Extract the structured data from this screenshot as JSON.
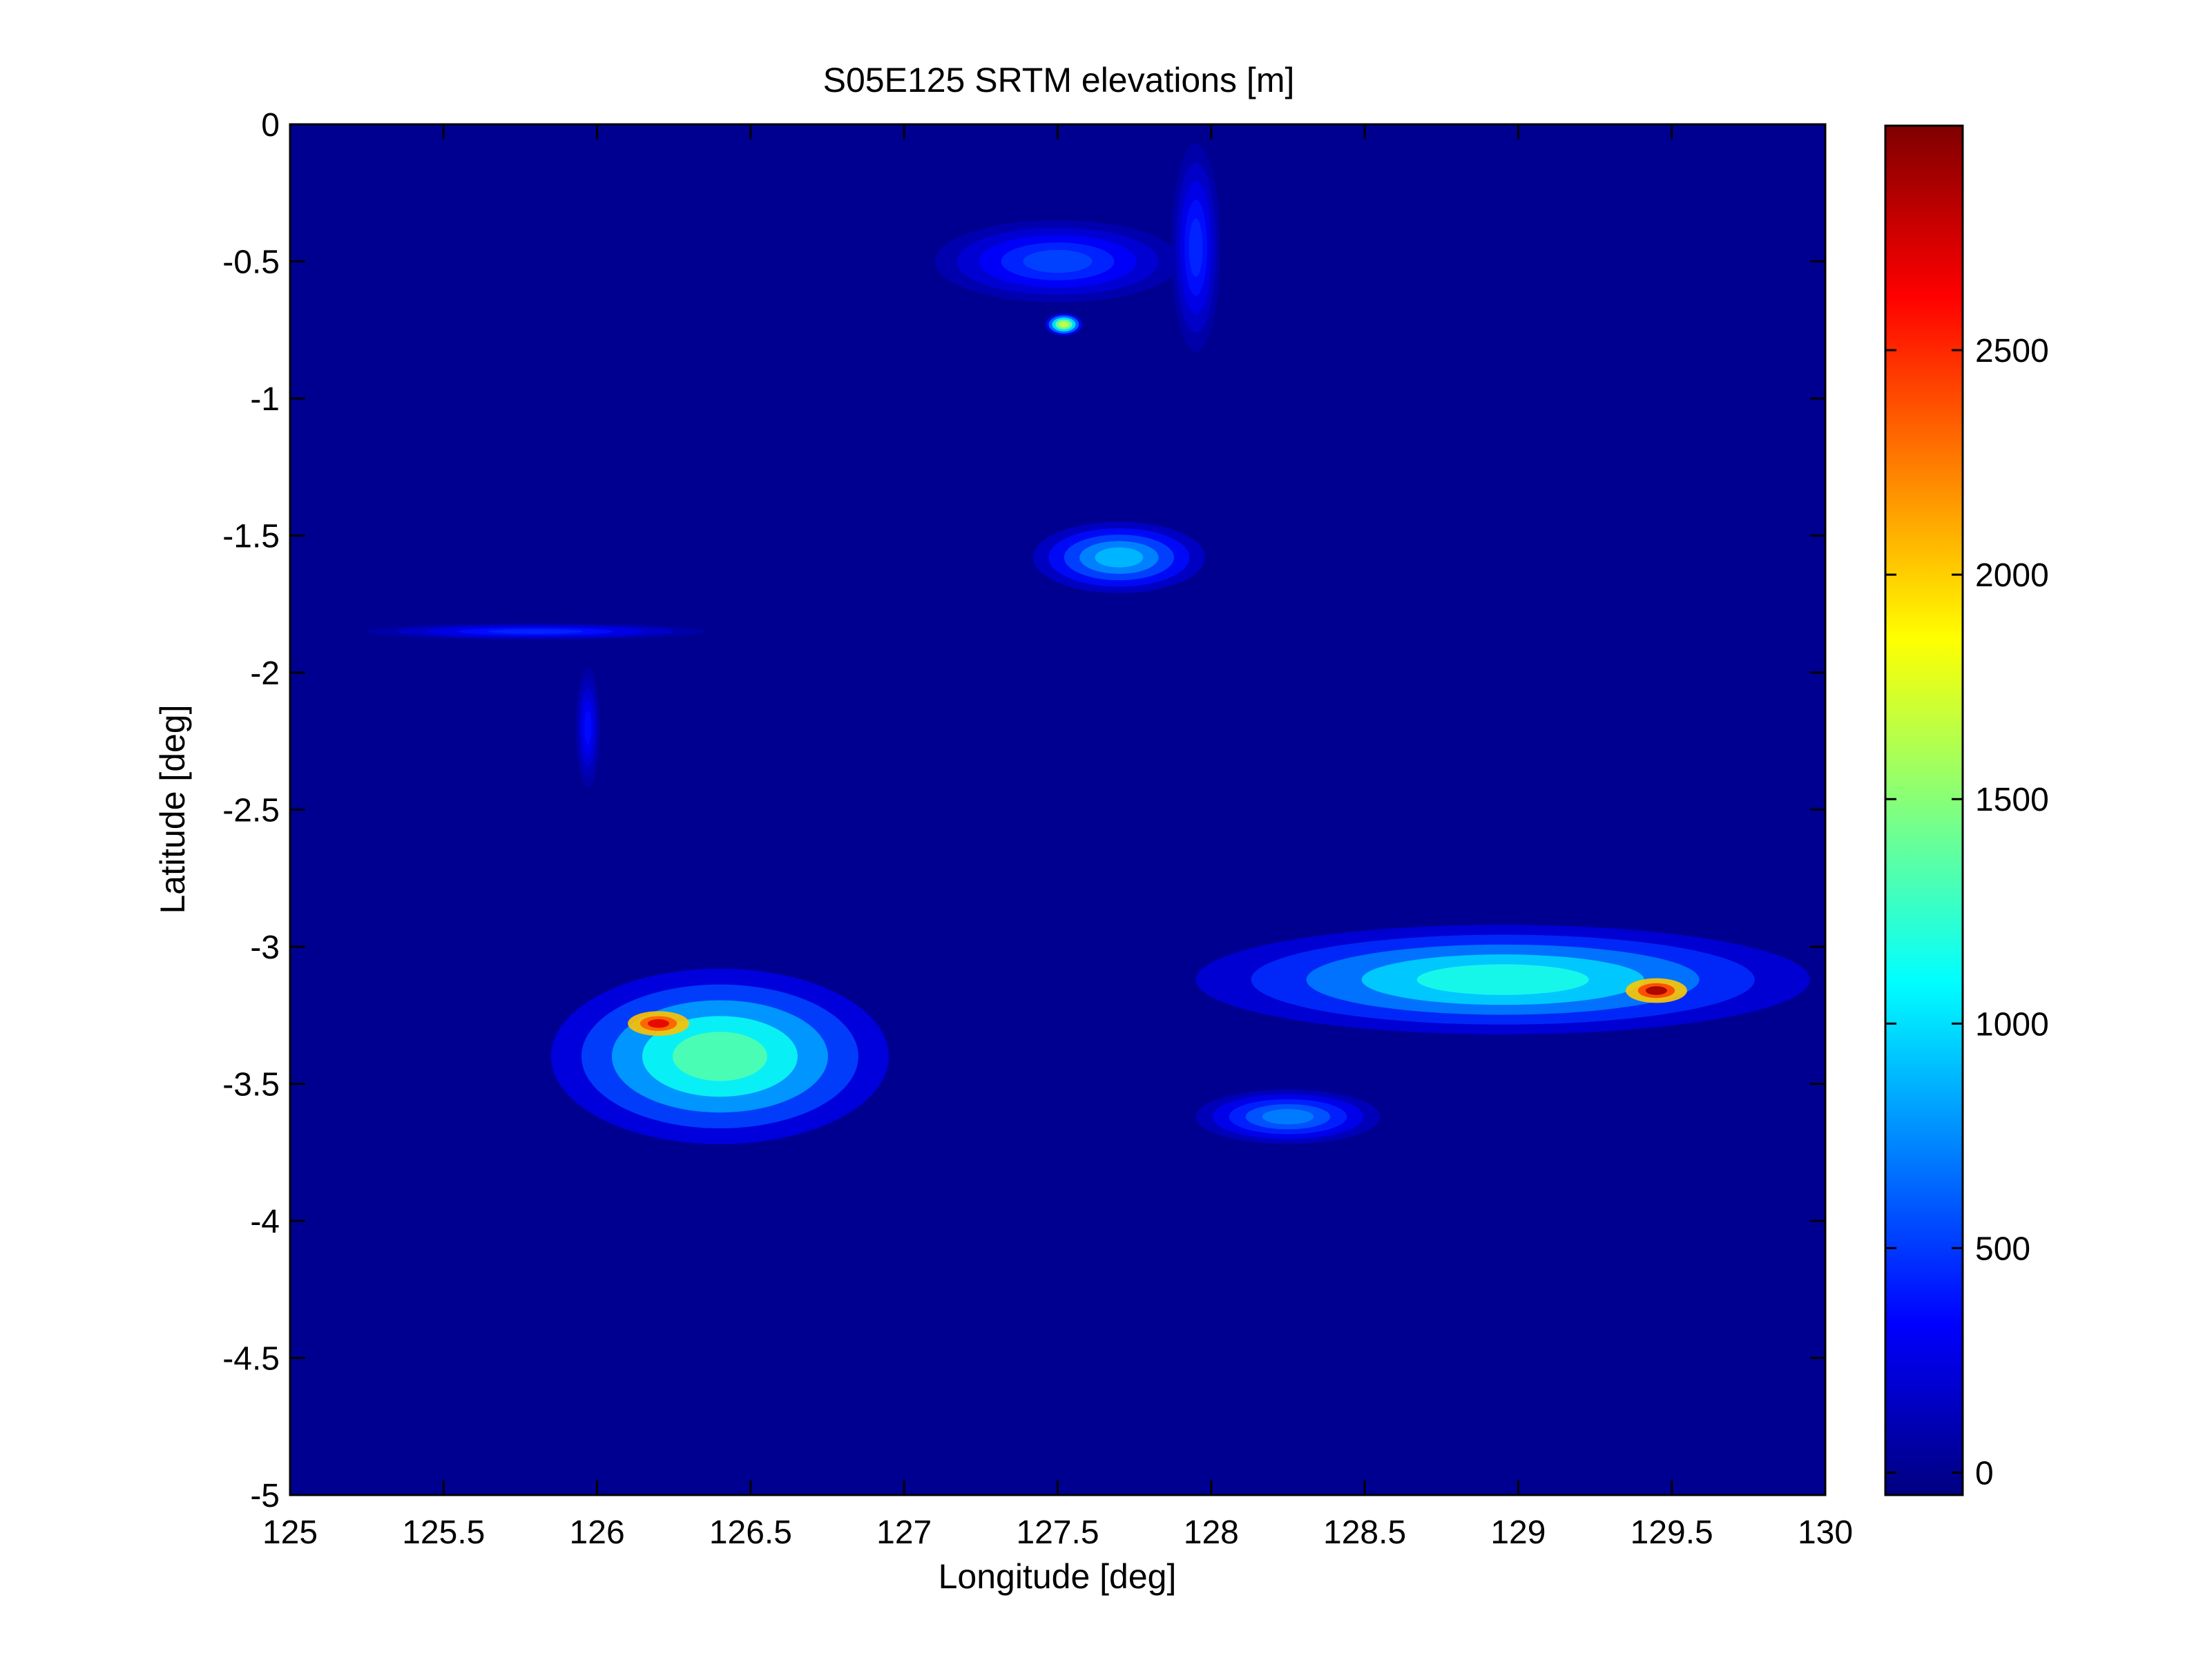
{
  "chart_data": {
    "type": "heatmap",
    "title": "S05E125 SRTM elevations [m]",
    "xlabel": "Longitude [deg]",
    "ylabel": "Latitude [deg]",
    "xlim": [
      125,
      130
    ],
    "ylim": [
      -5,
      0
    ],
    "x_ticks": [
      125,
      125.5,
      126,
      126.5,
      127,
      127.5,
      128,
      128.5,
      129,
      129.5,
      130
    ],
    "x_tick_labels": [
      "125",
      "125.5",
      "126",
      "126.5",
      "127",
      "127.5",
      "128",
      "128.5",
      "129",
      "129.5",
      "130"
    ],
    "y_ticks": [
      0,
      -0.5,
      -1,
      -1.5,
      -2,
      -2.5,
      -3,
      -3.5,
      -4,
      -4.5,
      -5
    ],
    "y_tick_labels": [
      "0",
      "-0.5",
      "-1",
      "-1.5",
      "-2",
      "-2.5",
      "-3",
      "-3.5",
      "-4",
      "-4.5",
      "-5"
    ],
    "colormap": "jet",
    "colorbar": {
      "range": [
        -50,
        3000
      ],
      "ticks": [
        0,
        500,
        1000,
        1500,
        2000,
        2500
      ],
      "tick_labels": [
        "0",
        "500",
        "1000",
        "1500",
        "2000",
        "2500"
      ]
    },
    "background_value": 0,
    "regions": [
      {
        "name": "west-island",
        "lon": 126.4,
        "lat": -3.4,
        "rx": 0.55,
        "ry": 0.32,
        "peak": 1500,
        "peak_lon": 126.2,
        "peak_lat": -3.28,
        "peak_value": 2700
      },
      {
        "name": "east-island",
        "lon": 128.95,
        "lat": -3.12,
        "rx": 1.0,
        "ry": 0.2,
        "peak": 1300,
        "peak_lon": 129.45,
        "peak_lat": -3.16,
        "peak_value": 2900
      },
      {
        "name": "south-east-islets",
        "lon": 128.25,
        "lat": -3.62,
        "rx": 0.3,
        "ry": 0.1,
        "peak": 800
      },
      {
        "name": "central-island",
        "lon": 127.7,
        "lat": -1.58,
        "rx": 0.28,
        "ry": 0.13,
        "peak": 1000
      },
      {
        "name": "north-peak",
        "lon": 127.52,
        "lat": -0.73,
        "rx": 0.06,
        "ry": 0.04,
        "peak": 1900
      },
      {
        "name": "north-islets",
        "lon": 127.5,
        "lat": -0.5,
        "rx": 0.4,
        "ry": 0.15,
        "peak": 600
      },
      {
        "name": "north-ridge",
        "lon": 127.95,
        "lat": -0.45,
        "rx": 0.08,
        "ry": 0.38,
        "peak": 500
      },
      {
        "name": "west-strip",
        "lon": 125.8,
        "lat": -1.85,
        "rx": 0.55,
        "ry": 0.03,
        "peak": 500
      },
      {
        "name": "west-vertical",
        "lon": 125.97,
        "lat": -2.2,
        "rx": 0.04,
        "ry": 0.22,
        "peak": 400
      }
    ]
  },
  "colors": {
    "background": "#ffffff",
    "axes": "#000000",
    "field_base": "#0000a6"
  }
}
